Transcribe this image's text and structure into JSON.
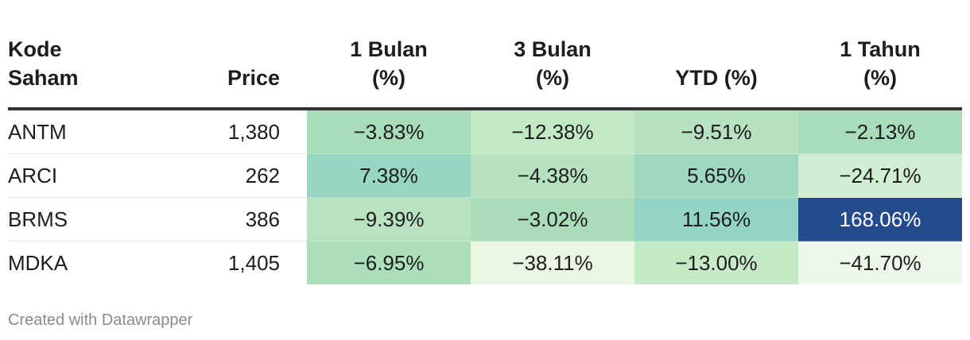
{
  "chart_data": {
    "type": "table",
    "columns": [
      "Kode Saham",
      "Price",
      "1 Bulan (%)",
      "3 Bulan (%)",
      "YTD (%)",
      "1 Tahun (%)"
    ],
    "header_lines": {
      "code": [
        "Kode",
        "Saham"
      ],
      "price": [
        "Price"
      ],
      "m1": [
        "1 Bulan",
        "(%)"
      ],
      "m3": [
        "3 Bulan",
        "(%)"
      ],
      "ytd": [
        "YTD (%)"
      ],
      "y1": [
        "1 Tahun",
        "(%)"
      ]
    },
    "rows": [
      {
        "code": "ANTM",
        "price": "1,380",
        "m1": "−3.83%",
        "m3": "−12.38%",
        "ytd": "−9.51%",
        "y1": "−2.13%"
      },
      {
        "code": "ARCI",
        "price": "262",
        "m1": "7.38%",
        "m3": "−4.38%",
        "ytd": "5.65%",
        "y1": "−24.71%"
      },
      {
        "code": "BRMS",
        "price": "386",
        "m1": "−9.39%",
        "m3": "−3.02%",
        "ytd": "11.56%",
        "y1": "168.06%"
      },
      {
        "code": "MDKA",
        "price": "1,405",
        "m1": "−6.95%",
        "m3": "−38.11%",
        "ytd": "−13.00%",
        "y1": "−41.70%"
      }
    ],
    "cell_colors": [
      [
        "#a9dcb8",
        "#c2e8c4",
        "#b7e2c0",
        "#a9dcb8"
      ],
      [
        "#97d6c3",
        "#b7e2c0",
        "#9ed8c0",
        "#d2eed2"
      ],
      [
        "#b9e2bf",
        "#aadcb9",
        "#94d4c4",
        "#254b8f"
      ],
      [
        "#acdeba",
        "#eaf6e4",
        "#c6e9c6",
        "#eef8ea"
      ]
    ],
    "cell_text_colors": [
      [
        "#1d1d1d",
        "#1d1d1d",
        "#1d1d1d",
        "#1d1d1d"
      ],
      [
        "#1d1d1d",
        "#1d1d1d",
        "#1d1d1d",
        "#1d1d1d"
      ],
      [
        "#1d1d1d",
        "#1d1d1d",
        "#1d1d1d",
        "#ffffff"
      ],
      [
        "#1d1d1d",
        "#1d1d1d",
        "#1d1d1d",
        "#1d1d1d"
      ]
    ]
  },
  "footer": {
    "credit": "Created with Datawrapper"
  }
}
